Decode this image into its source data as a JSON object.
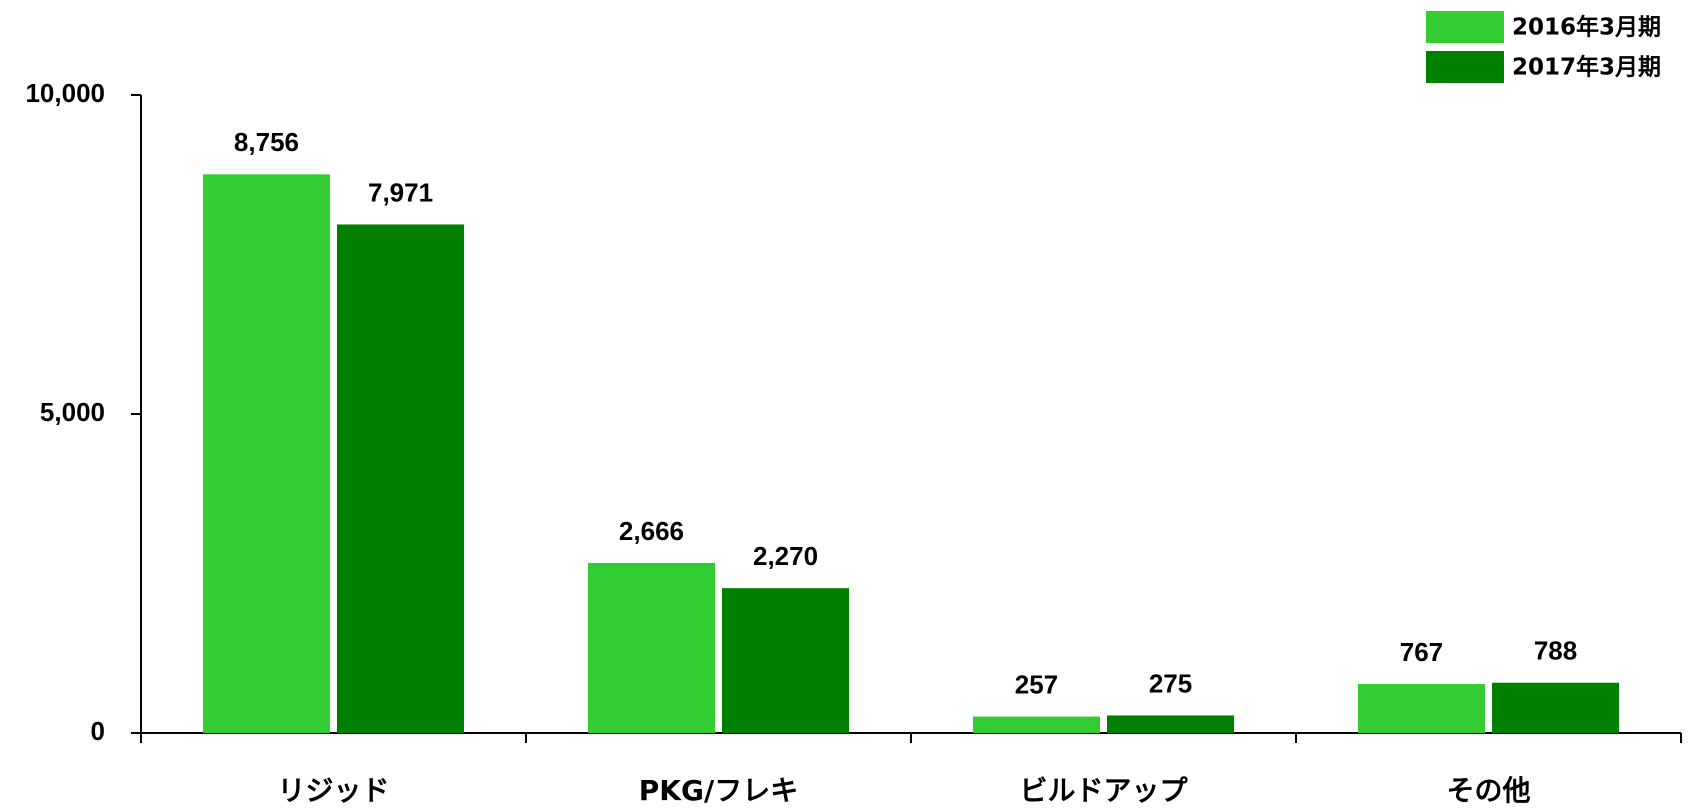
{
  "chart_data": {
    "type": "bar",
    "categories": [
      "リジッド",
      "PKG/フレキ",
      "ビルドアップ",
      "その他"
    ],
    "series": [
      {
        "name": "2016年3月期",
        "color": "#33cc33",
        "values": [
          8756,
          2666,
          257,
          767
        ],
        "value_labels": [
          "8,756",
          "2,666",
          "257",
          "767"
        ]
      },
      {
        "name": "2017年3月期",
        "color": "#008000",
        "values": [
          7971,
          2270,
          275,
          788
        ],
        "value_labels": [
          "7,971",
          "2,270",
          "275",
          "788"
        ]
      }
    ],
    "ylim": [
      0,
      10000
    ],
    "yticks": [
      0,
      {
        "value": 5000,
        "label": "5,000"
      },
      {
        "value": 10000,
        "label": "10,000"
      }
    ],
    "legend": "top-right"
  }
}
